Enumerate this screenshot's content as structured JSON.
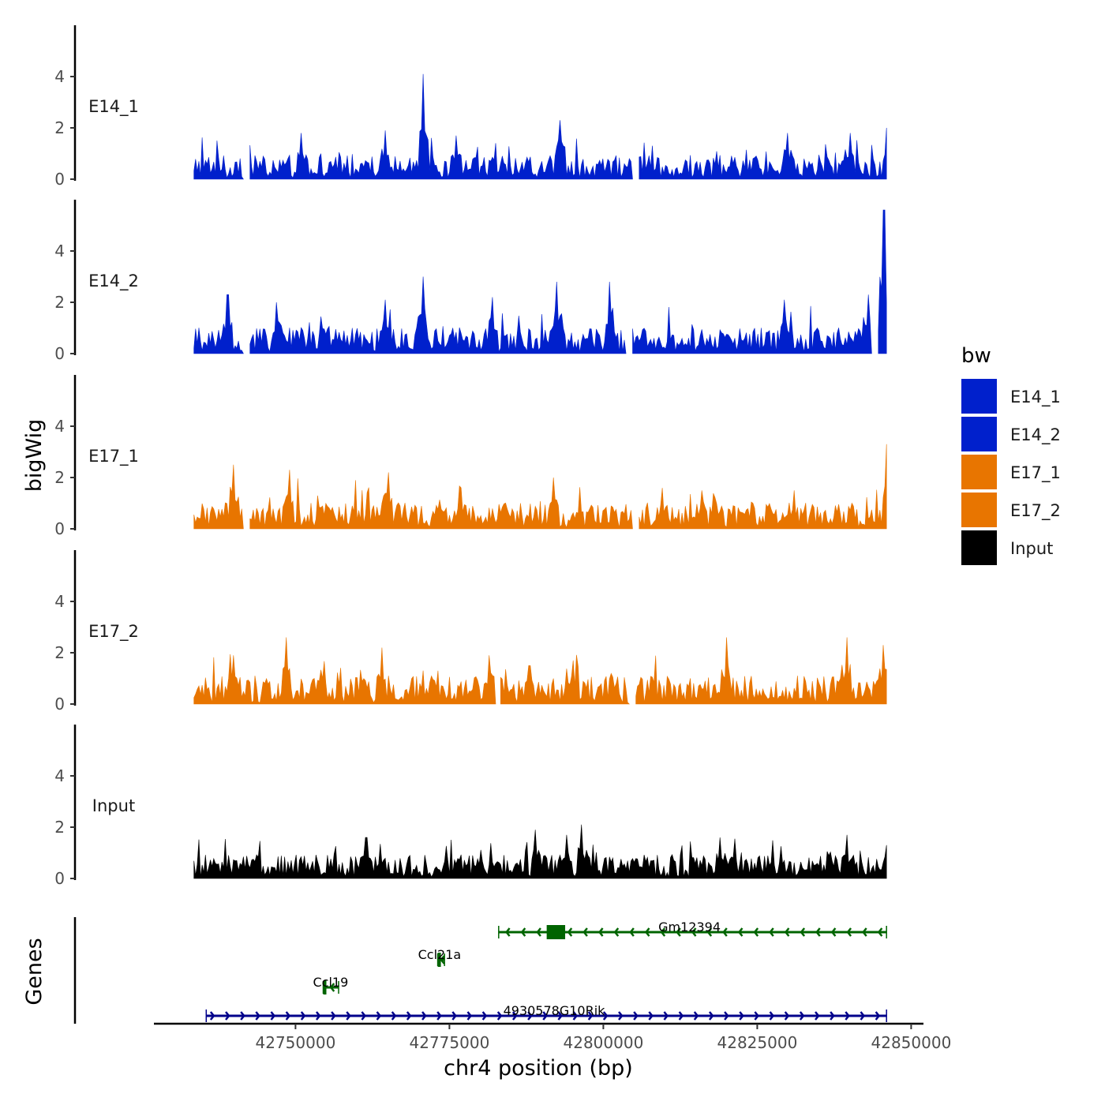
{
  "chart_data": {
    "type": "area",
    "region": {
      "chrom": "chr4",
      "start": 42733500,
      "end": 42846000
    },
    "xlabel": "chr4 position (bp)",
    "x_ticks": [
      "42750000",
      "42775000",
      "42800000",
      "42825000",
      "42850000"
    ],
    "x_tick_values": [
      42750000,
      42775000,
      42800000,
      42825000,
      42850000
    ],
    "xlim": [
      42727000,
      42852000
    ],
    "ylabel": "bigWig",
    "ylim": [
      0,
      6
    ],
    "y_ticks": [
      "0",
      "2",
      "4"
    ],
    "y_tick_values": [
      0,
      2,
      4
    ],
    "tracks": [
      {
        "name": "E14_1",
        "color": "#0020CC",
        "baseline": 0.55,
        "peaks": [
          {
            "x": 42751000,
            "y": 1.8
          },
          {
            "x": 42764500,
            "y": 1.9
          },
          {
            "x": 42770800,
            "y": 4.1
          },
          {
            "x": 42776000,
            "y": 1.7
          },
          {
            "x": 42793000,
            "y": 2.3
          },
          {
            "x": 42805000,
            "y": 1.6
          },
          {
            "x": 42830000,
            "y": 1.8
          },
          {
            "x": 42840000,
            "y": 1.8
          },
          {
            "x": 42846000,
            "y": 2.0
          }
        ],
        "gaps": [
          [
            42741500,
            42742500
          ],
          [
            42804500,
            42805600
          ]
        ]
      },
      {
        "name": "E14_2",
        "color": "#0020CC",
        "baseline": 0.6,
        "peaks": [
          {
            "x": 42739000,
            "y": 2.3
          },
          {
            "x": 42747000,
            "y": 2.0
          },
          {
            "x": 42764500,
            "y": 2.1
          },
          {
            "x": 42770700,
            "y": 3.0
          },
          {
            "x": 42782000,
            "y": 2.2
          },
          {
            "x": 42792500,
            "y": 2.8
          },
          {
            "x": 42801000,
            "y": 2.8
          },
          {
            "x": 42829500,
            "y": 2.1
          },
          {
            "x": 42845600,
            "y": 5.6
          },
          {
            "x": 42843000,
            "y": 2.3
          }
        ],
        "gaps": [
          [
            42741500,
            42742500
          ],
          [
            42803500,
            42804500
          ],
          [
            42843500,
            42844500
          ]
        ]
      },
      {
        "name": "E17_1",
        "color": "#E87500",
        "baseline": 0.6,
        "peaks": [
          {
            "x": 42740000,
            "y": 2.5
          },
          {
            "x": 42749000,
            "y": 2.3
          },
          {
            "x": 42765000,
            "y": 2.2
          },
          {
            "x": 42777000,
            "y": 1.6
          },
          {
            "x": 42792000,
            "y": 2.0
          },
          {
            "x": 42816000,
            "y": 1.5
          },
          {
            "x": 42831000,
            "y": 1.5
          },
          {
            "x": 42846000,
            "y": 3.3
          }
        ],
        "gaps": [
          [
            42741500,
            42742500
          ],
          [
            42804600,
            42805600
          ]
        ]
      },
      {
        "name": "E17_2",
        "color": "#E87500",
        "baseline": 0.65,
        "peaks": [
          {
            "x": 42740000,
            "y": 1.9
          },
          {
            "x": 42748500,
            "y": 2.6
          },
          {
            "x": 42764000,
            "y": 2.2
          },
          {
            "x": 42781500,
            "y": 1.9
          },
          {
            "x": 42788000,
            "y": 1.5
          },
          {
            "x": 42795000,
            "y": 1.7
          },
          {
            "x": 42820000,
            "y": 2.6
          },
          {
            "x": 42839500,
            "y": 2.6
          },
          {
            "x": 42845500,
            "y": 2.3
          }
        ],
        "gaps": [
          [
            42782500,
            42783200
          ],
          [
            42804200,
            42805200
          ]
        ]
      },
      {
        "name": "Input",
        "color": "#000000",
        "baseline": 0.55,
        "peaks": [
          {
            "x": 42761500,
            "y": 1.6
          },
          {
            "x": 42789000,
            "y": 1.9
          },
          {
            "x": 42796500,
            "y": 2.1
          },
          {
            "x": 42794000,
            "y": 1.7
          },
          {
            "x": 42819000,
            "y": 1.6
          },
          {
            "x": 42839500,
            "y": 1.7
          },
          {
            "x": 42846000,
            "y": 1.3
          }
        ],
        "gaps": []
      }
    ],
    "legend": {
      "title": "bw",
      "entries": [
        {
          "label": "E14_1",
          "color": "#0020CC"
        },
        {
          "label": "E14_2",
          "color": "#0020CC"
        },
        {
          "label": "E17_1",
          "color": "#E87500"
        },
        {
          "label": "E17_2",
          "color": "#E87500"
        },
        {
          "label": "Input",
          "color": "#000000"
        }
      ]
    },
    "genes_panel": {
      "ylabel": "Genes",
      "genes": [
        {
          "name": "Gm12394",
          "start": 42783000,
          "end": 42846000,
          "strand": "-",
          "row": 0,
          "color": "#006400",
          "exons": [
            [
              42790800,
              42793800
            ]
          ],
          "label_x": 42814000
        },
        {
          "name": "Ccl21a",
          "start": 42773100,
          "end": 42774200,
          "strand": "-",
          "row": 1,
          "color": "#006400",
          "exons": [
            [
              42773100,
              42773500
            ]
          ],
          "label_x": 42773400
        },
        {
          "name": "Ccl19",
          "start": 42754500,
          "end": 42757000,
          "strand": "-",
          "row": 2,
          "color": "#006400",
          "exons": [
            [
              42754500,
              42755000
            ]
          ],
          "label_x": 42755700
        },
        {
          "name": "4930578G10Rik",
          "start": 42735500,
          "end": 42846000,
          "strand": "+",
          "row": 3,
          "color": "#00008B",
          "exons": [],
          "label_x": 42792000
        }
      ]
    }
  }
}
